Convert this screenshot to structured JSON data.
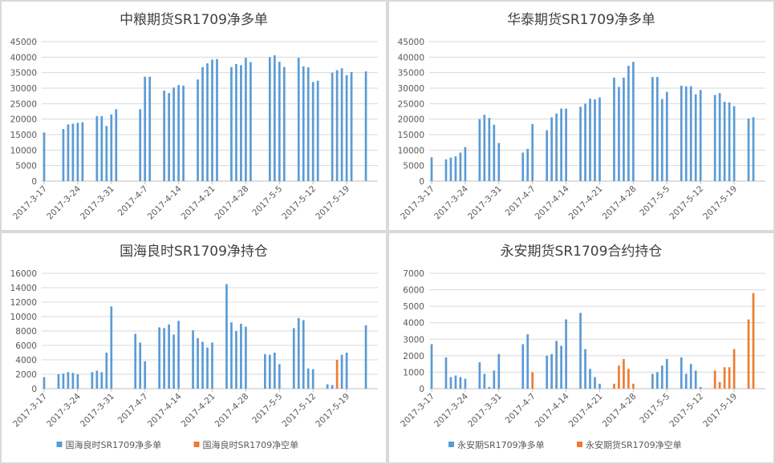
{
  "page": {
    "background": "#d9d9d9"
  },
  "colors": {
    "blue": "#5b9bd5",
    "orange": "#ed7d31",
    "grid": "#d9d9d9",
    "axis": "#bfbfbf",
    "text": "#595959",
    "title": "#404040"
  },
  "chart_data": [
    {
      "type": "bar",
      "title": "中粮期货SR1709净多单",
      "ylim": [
        0,
        45000
      ],
      "yticks": [
        0,
        5000,
        10000,
        15000,
        20000,
        25000,
        30000,
        35000,
        40000,
        45000
      ],
      "x_start": "2017-3-17",
      "x_end": "2017-5-25",
      "xtick_labels": [
        "2017-3-17",
        "2017-3-24",
        "2017-3-31",
        "2017-4-7",
        "2017-4-14",
        "2017-4-21",
        "2017-4-28",
        "2017-5-5",
        "2017-5-12",
        "2017-5-19"
      ],
      "grid": true,
      "legend": "none",
      "series": [
        {
          "color": "#5b9bd5",
          "points": [
            [
              "2017-3-17",
              15700
            ],
            [
              "2017-3-21",
              16800
            ],
            [
              "2017-3-22",
              18300
            ],
            [
              "2017-3-23",
              18500
            ],
            [
              "2017-3-24",
              18800
            ],
            [
              "2017-3-25",
              19000
            ],
            [
              "2017-3-28",
              21000
            ],
            [
              "2017-3-29",
              21000
            ],
            [
              "2017-3-30",
              17800
            ],
            [
              "2017-3-31",
              21500
            ],
            [
              "2017-4-1",
              23200
            ],
            [
              "2017-4-6",
              23200
            ],
            [
              "2017-4-7",
              33700
            ],
            [
              "2017-4-8",
              33700
            ],
            [
              "2017-4-11",
              29200
            ],
            [
              "2017-4-12",
              28400
            ],
            [
              "2017-4-13",
              30200
            ],
            [
              "2017-4-14",
              31000
            ],
            [
              "2017-4-15",
              30800
            ],
            [
              "2017-4-18",
              32800
            ],
            [
              "2017-4-19",
              36800
            ],
            [
              "2017-4-20",
              38000
            ],
            [
              "2017-4-21",
              39200
            ],
            [
              "2017-4-22",
              39400
            ],
            [
              "2017-4-25",
              36800
            ],
            [
              "2017-4-26",
              37800
            ],
            [
              "2017-4-27",
              37400
            ],
            [
              "2017-4-28",
              39800
            ],
            [
              "2017-4-29",
              38400
            ],
            [
              "2017-5-3",
              40000
            ],
            [
              "2017-5-4",
              40600
            ],
            [
              "2017-5-5",
              38500
            ],
            [
              "2017-5-6",
              36800
            ],
            [
              "2017-5-9",
              39800
            ],
            [
              "2017-5-10",
              37000
            ],
            [
              "2017-5-11",
              36700
            ],
            [
              "2017-5-12",
              32000
            ],
            [
              "2017-5-13",
              32400
            ],
            [
              "2017-5-16",
              35000
            ],
            [
              "2017-5-17",
              35800
            ],
            [
              "2017-5-18",
              36400
            ],
            [
              "2017-5-19",
              34200
            ],
            [
              "2017-5-20",
              35200
            ],
            [
              "2017-5-23",
              35400
            ]
          ]
        }
      ]
    },
    {
      "type": "bar",
      "title": "华泰期货SR1709净多单",
      "ylim": [
        0,
        45000
      ],
      "yticks": [
        0,
        5000,
        10000,
        15000,
        20000,
        25000,
        30000,
        35000,
        40000,
        45000
      ],
      "x_start": "2017-3-17",
      "x_end": "2017-5-25",
      "xtick_labels": [
        "2017-3-17",
        "2017-3-24",
        "2017-3-31",
        "2017-4-7",
        "2017-4-14",
        "2017-4-21",
        "2017-4-28",
        "2017-5-5",
        "2017-5-12",
        "2017-5-19"
      ],
      "grid": true,
      "legend": "none",
      "series": [
        {
          "color": "#5b9bd5",
          "points": [
            [
              "2017-3-17",
              7700
            ],
            [
              "2017-3-20",
              7000
            ],
            [
              "2017-3-21",
              7600
            ],
            [
              "2017-3-22",
              8000
            ],
            [
              "2017-3-23",
              9200
            ],
            [
              "2017-3-24",
              11000
            ],
            [
              "2017-3-27",
              20000
            ],
            [
              "2017-3-28",
              21400
            ],
            [
              "2017-3-29",
              20400
            ],
            [
              "2017-3-30",
              18200
            ],
            [
              "2017-3-31",
              12300
            ],
            [
              "2017-4-5",
              9200
            ],
            [
              "2017-4-6",
              10400
            ],
            [
              "2017-4-7",
              18400
            ],
            [
              "2017-4-10",
              16400
            ],
            [
              "2017-4-11",
              20600
            ],
            [
              "2017-4-12",
              21800
            ],
            [
              "2017-4-13",
              23400
            ],
            [
              "2017-4-14",
              23400
            ],
            [
              "2017-4-17",
              24000
            ],
            [
              "2017-4-18",
              25000
            ],
            [
              "2017-4-19",
              26600
            ],
            [
              "2017-4-20",
              26400
            ],
            [
              "2017-4-21",
              27000
            ],
            [
              "2017-4-24",
              33400
            ],
            [
              "2017-4-25",
              30400
            ],
            [
              "2017-4-26",
              33400
            ],
            [
              "2017-4-27",
              37200
            ],
            [
              "2017-4-28",
              38500
            ],
            [
              "2017-5-2",
              33600
            ],
            [
              "2017-5-3",
              33600
            ],
            [
              "2017-5-4",
              26500
            ],
            [
              "2017-5-5",
              28800
            ],
            [
              "2017-5-8",
              30800
            ],
            [
              "2017-5-9",
              30600
            ],
            [
              "2017-5-10",
              30600
            ],
            [
              "2017-5-11",
              28000
            ],
            [
              "2017-5-12",
              29400
            ],
            [
              "2017-5-15",
              27800
            ],
            [
              "2017-5-16",
              28400
            ],
            [
              "2017-5-17",
              25600
            ],
            [
              "2017-5-18",
              25400
            ],
            [
              "2017-5-19",
              24200
            ],
            [
              "2017-5-22",
              20200
            ],
            [
              "2017-5-23",
              20600
            ]
          ]
        }
      ]
    },
    {
      "type": "bar",
      "title": "国海良时SR1709净持仓",
      "ylim": [
        0,
        16000
      ],
      "yticks": [
        0,
        2000,
        4000,
        6000,
        8000,
        10000,
        12000,
        14000,
        16000
      ],
      "x_start": "2017-3-17",
      "x_end": "2017-5-25",
      "xtick_labels": [
        "2017-3-17",
        "2017-3-24",
        "2017-3-31",
        "2017-4-7",
        "2017-4-14",
        "2017-4-21",
        "2017-4-28",
        "2017-5-5",
        "2017-5-12",
        "2017-5-19"
      ],
      "grid": true,
      "legend": "bottom",
      "series": [
        {
          "name": "国海良时SR1709净多单",
          "color": "#5b9bd5",
          "points": [
            [
              "2017-3-17",
              1600
            ],
            [
              "2017-3-20",
              2000
            ],
            [
              "2017-3-21",
              2100
            ],
            [
              "2017-3-22",
              2300
            ],
            [
              "2017-3-23",
              2200
            ],
            [
              "2017-3-24",
              2000
            ],
            [
              "2017-3-27",
              2300
            ],
            [
              "2017-3-28",
              2500
            ],
            [
              "2017-3-29",
              2300
            ],
            [
              "2017-3-30",
              5000
            ],
            [
              "2017-3-31",
              11400
            ],
            [
              "2017-4-5",
              7600
            ],
            [
              "2017-4-6",
              6400
            ],
            [
              "2017-4-7",
              3800
            ],
            [
              "2017-4-10",
              8500
            ],
            [
              "2017-4-11",
              8400
            ],
            [
              "2017-4-12",
              8900
            ],
            [
              "2017-4-13",
              7500
            ],
            [
              "2017-4-14",
              9400
            ],
            [
              "2017-4-17",
              8100
            ],
            [
              "2017-4-18",
              7000
            ],
            [
              "2017-4-19",
              6500
            ],
            [
              "2017-4-20",
              5700
            ],
            [
              "2017-4-21",
              6400
            ],
            [
              "2017-4-24",
              14500
            ],
            [
              "2017-4-25",
              9200
            ],
            [
              "2017-4-26",
              8000
            ],
            [
              "2017-4-27",
              9000
            ],
            [
              "2017-4-28",
              8600
            ],
            [
              "2017-5-2",
              4800
            ],
            [
              "2017-5-3",
              4700
            ],
            [
              "2017-5-4",
              5000
            ],
            [
              "2017-5-5",
              3400
            ],
            [
              "2017-5-8",
              8400
            ],
            [
              "2017-5-9",
              9800
            ],
            [
              "2017-5-10",
              9500
            ],
            [
              "2017-5-11",
              2800
            ],
            [
              "2017-5-12",
              2700
            ],
            [
              "2017-5-15",
              600
            ],
            [
              "2017-5-16",
              500
            ],
            [
              "2017-5-18",
              4700
            ],
            [
              "2017-5-19",
              5000
            ],
            [
              "2017-5-23",
              8800
            ]
          ]
        },
        {
          "name": "国海良时SR1709净空单",
          "color": "#ed7d31",
          "points": [
            [
              "2017-5-17",
              4000
            ]
          ]
        }
      ]
    },
    {
      "type": "bar",
      "title": "永安期货SR1709合约持仓",
      "ylim": [
        0,
        7000
      ],
      "yticks": [
        0,
        1000,
        2000,
        3000,
        4000,
        5000,
        6000,
        7000
      ],
      "x_start": "2017-3-17",
      "x_end": "2017-5-25",
      "xtick_labels": [
        "2017-3-17",
        "2017-3-24",
        "2017-3-31",
        "2017-4-7",
        "2017-4-14",
        "2017-4-21",
        "2017-4-28",
        "2017-5-5",
        "2017-5-12",
        "2017-5-19"
      ],
      "grid": true,
      "legend": "bottom",
      "series": [
        {
          "name": "永安期SR1709净多单",
          "color": "#5b9bd5",
          "points": [
            [
              "2017-3-17",
              2700
            ],
            [
              "2017-3-20",
              1900
            ],
            [
              "2017-3-21",
              700
            ],
            [
              "2017-3-22",
              800
            ],
            [
              "2017-3-23",
              700
            ],
            [
              "2017-3-24",
              600
            ],
            [
              "2017-3-27",
              1600
            ],
            [
              "2017-3-28",
              900
            ],
            [
              "2017-3-29",
              100
            ],
            [
              "2017-3-30",
              1100
            ],
            [
              "2017-3-31",
              2100
            ],
            [
              "2017-4-5",
              2700
            ],
            [
              "2017-4-6",
              3300
            ],
            [
              "2017-4-10",
              2000
            ],
            [
              "2017-4-11",
              2100
            ],
            [
              "2017-4-12",
              2900
            ],
            [
              "2017-4-13",
              2600
            ],
            [
              "2017-4-14",
              4200
            ],
            [
              "2017-4-17",
              4600
            ],
            [
              "2017-4-18",
              2400
            ],
            [
              "2017-4-19",
              1200
            ],
            [
              "2017-4-20",
              700
            ],
            [
              "2017-4-21",
              300
            ],
            [
              "2017-5-2",
              900
            ],
            [
              "2017-5-3",
              1000
            ],
            [
              "2017-5-4",
              1400
            ],
            [
              "2017-5-5",
              1800
            ],
            [
              "2017-5-8",
              1900
            ],
            [
              "2017-5-9",
              900
            ],
            [
              "2017-5-10",
              1500
            ],
            [
              "2017-5-11",
              1100
            ],
            [
              "2017-5-12",
              100
            ]
          ]
        },
        {
          "name": "永安期货SR1709净空单",
          "color": "#ed7d31",
          "points": [
            [
              "2017-4-7",
              1000
            ],
            [
              "2017-4-24",
              300
            ],
            [
              "2017-4-25",
              1400
            ],
            [
              "2017-4-26",
              1800
            ],
            [
              "2017-4-27",
              1200
            ],
            [
              "2017-4-28",
              300
            ],
            [
              "2017-5-15",
              1100
            ],
            [
              "2017-5-16",
              400
            ],
            [
              "2017-5-17",
              1300
            ],
            [
              "2017-5-18",
              1300
            ],
            [
              "2017-5-19",
              2400
            ],
            [
              "2017-5-22",
              4200
            ],
            [
              "2017-5-23",
              5800
            ]
          ]
        }
      ]
    }
  ]
}
